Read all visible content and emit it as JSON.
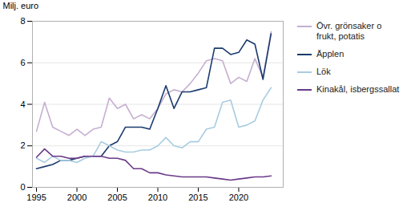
{
  "chart_data": {
    "type": "line",
    "ylabel": "Milj. euro",
    "x": [
      1995,
      1996,
      1997,
      1998,
      1999,
      2000,
      2001,
      2002,
      2003,
      2004,
      2005,
      2006,
      2007,
      2008,
      2009,
      2010,
      2011,
      2012,
      2013,
      2014,
      2015,
      2016,
      2017,
      2018,
      2019,
      2020,
      2021,
      2022,
      2023,
      2024
    ],
    "series": [
      {
        "name": "Övr. grönsaker o\nfrukt, potatis",
        "color": "#c5afd0",
        "values": [
          2.7,
          4.1,
          2.9,
          2.7,
          2.5,
          2.8,
          2.5,
          2.8,
          2.9,
          4.3,
          3.8,
          4.0,
          3.3,
          3.5,
          3.3,
          3.8,
          4.5,
          4.7,
          4.6,
          5.0,
          5.5,
          6.1,
          6.2,
          6.1,
          5.0,
          5.3,
          5.1,
          6.2,
          5.3,
          7.5
        ]
      },
      {
        "name": "Äpplen",
        "color": "#1a3a6e",
        "values": [
          0.9,
          1.0,
          1.1,
          1.3,
          1.3,
          1.4,
          1.5,
          1.5,
          1.5,
          2.0,
          2.2,
          2.9,
          2.9,
          2.9,
          2.8,
          3.8,
          4.9,
          3.8,
          4.6,
          4.6,
          4.7,
          4.8,
          6.7,
          6.7,
          6.4,
          6.5,
          7.1,
          6.9,
          5.2,
          7.4
        ]
      },
      {
        "name": "Lök",
        "color": "#a8cce0",
        "values": [
          1.4,
          1.2,
          1.5,
          1.3,
          1.3,
          1.2,
          1.4,
          1.5,
          2.2,
          2.0,
          1.8,
          1.7,
          1.7,
          1.8,
          1.8,
          2.0,
          2.4,
          2.0,
          1.9,
          2.2,
          2.2,
          2.8,
          2.9,
          4.1,
          4.2,
          2.9,
          3.0,
          3.2,
          4.2,
          4.8
        ]
      },
      {
        "name": "Kinakål, isbergssallat",
        "color": "#6b3a8a",
        "values": [
          1.45,
          1.85,
          1.5,
          1.5,
          1.4,
          1.4,
          1.5,
          1.5,
          1.5,
          1.4,
          1.4,
          1.3,
          0.9,
          0.9,
          0.7,
          0.7,
          0.6,
          0.55,
          0.5,
          0.5,
          0.5,
          0.5,
          0.45,
          0.4,
          0.35,
          0.4,
          0.45,
          0.5,
          0.5,
          0.55
        ]
      }
    ],
    "xlim": [
      1994.5,
      2025.5
    ],
    "xticks": [
      1995,
      2000,
      2005,
      2010,
      2015,
      2020
    ],
    "ylim": [
      0,
      8
    ],
    "yticks": [
      0,
      2,
      4,
      6,
      8
    ],
    "grid": "y",
    "legend": "right"
  }
}
